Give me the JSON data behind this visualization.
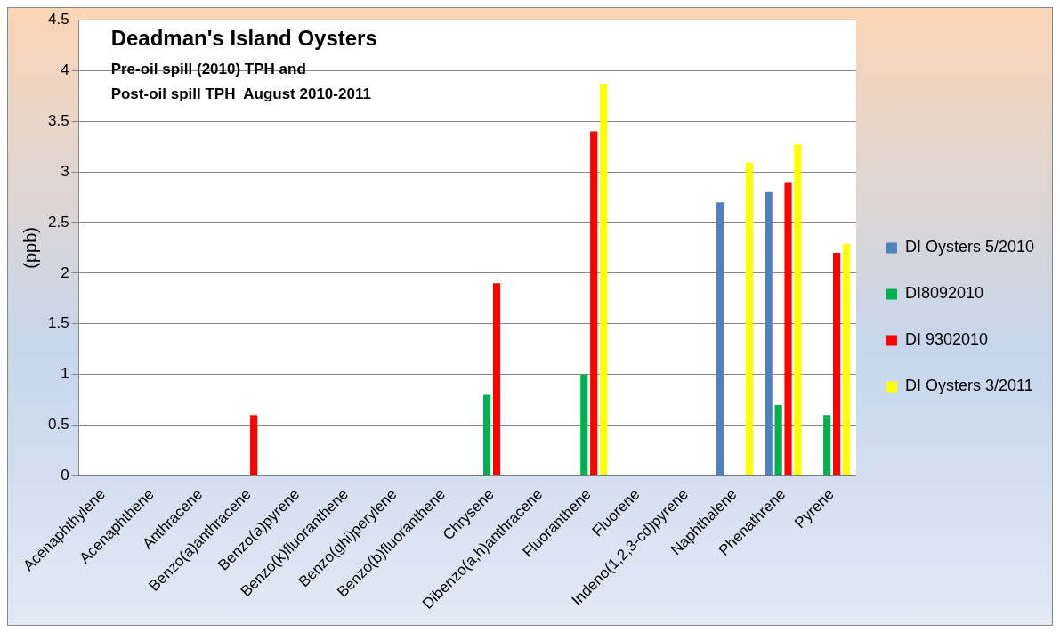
{
  "chart_data": {
    "type": "bar",
    "title": "Deadman's Island Oysters",
    "subtitle": "Pre-oil spill (2010) TPH and\nPost-oil spill TPH  August 2010-2011",
    "ylabel": "(ppb)",
    "categories": [
      "Acenaphthylene",
      "Acenaphthene",
      "Anthracene",
      "Benzo(a)anthracene",
      "Benzo(a)pyrene",
      "Benzo(k)fluoranthene",
      "Benzo(ghi)perylene",
      "Benzo(b)fluoranthene",
      "Chrysene",
      "Dibenzo(a,h)anthracene",
      "Fluoranthene",
      "Fluorene",
      "Indeno(1,2,3-cd)pyrene",
      "Naphthalene",
      "Phenathrene",
      "Pyrene"
    ],
    "series": [
      {
        "name": "DI Oysters 5/2010",
        "color": "#4f81bd",
        "values": [
          null,
          null,
          null,
          null,
          null,
          null,
          null,
          null,
          null,
          null,
          null,
          null,
          null,
          2.7,
          2.8,
          null
        ]
      },
      {
        "name": "DI8092010",
        "color": "#00b050",
        "values": [
          null,
          null,
          null,
          null,
          null,
          null,
          null,
          null,
          0.8,
          null,
          1.0,
          null,
          null,
          null,
          0.7,
          0.6
        ]
      },
      {
        "name": "DI 9302010",
        "color": "#ff0000",
        "values": [
          null,
          null,
          null,
          0.6,
          null,
          null,
          null,
          null,
          1.9,
          null,
          3.4,
          null,
          null,
          null,
          2.9,
          2.2
        ]
      },
      {
        "name": "DI Oysters 3/2011",
        "color": "#ffff00",
        "values": [
          null,
          null,
          null,
          null,
          null,
          null,
          null,
          null,
          null,
          null,
          3.87,
          null,
          null,
          3.09,
          3.27,
          2.29
        ]
      }
    ],
    "ylim": [
      0,
      4.5
    ],
    "yticks": [
      0,
      0.5,
      1,
      1.5,
      2,
      2.5,
      3,
      3.5,
      4,
      4.5
    ],
    "grid": "y",
    "legend": "right"
  }
}
